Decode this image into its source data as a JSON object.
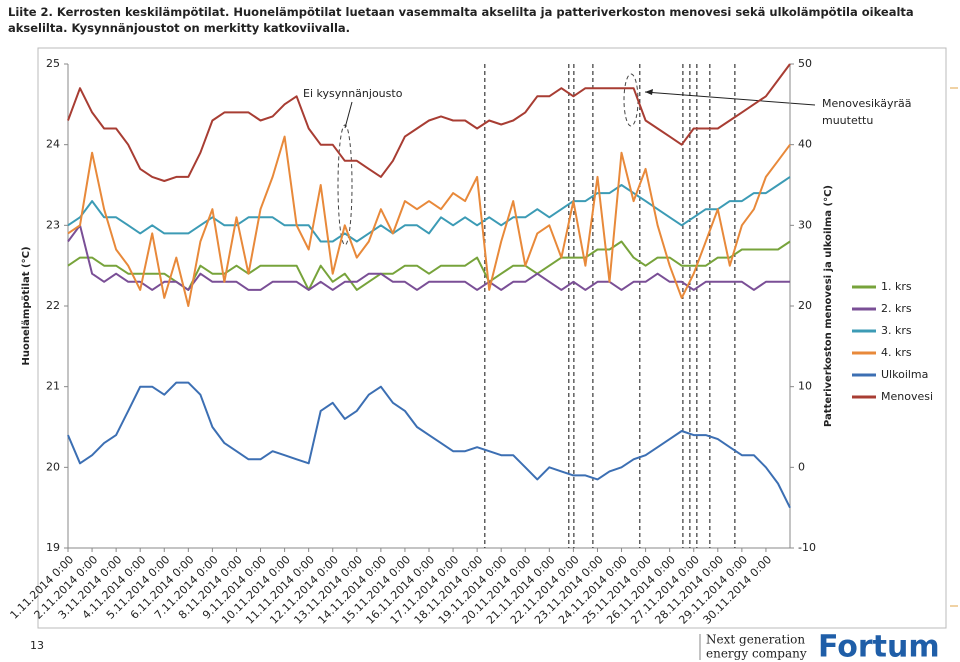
{
  "chart_data": {
    "type": "line",
    "title": "Liite 2. Kerrosten keskilämpötilat. Huonelämpötilat luetaan vasemmalta akselilta ja patteriverkoston menovesi sekä ulkolämpötila oikealta akselilta. Kysynnänjoustot on merkitty katkoviivalla.",
    "ylabel": "Huonelämpötilat (°C)",
    "y2label": "Patteriverkoston menovesi ja ulkoilma (°C)",
    "annotations": [
      {
        "text": [
          "Ei kysynnänjousto"
        ]
      },
      {
        "text": [
          "Menovesikäyrää",
          "muutettu"
        ]
      }
    ],
    "xlim": [
      0,
      30
    ],
    "xticks": [
      {
        "value": 0,
        "label": "1.11.2014 0:00"
      },
      {
        "value": 1,
        "label": "2.11.2014 0:00"
      },
      {
        "value": 2,
        "label": "3.11.2014 0:00"
      },
      {
        "value": 3,
        "label": "4.11.2014 0:00"
      },
      {
        "value": 4,
        "label": "5.11.2014 0:00"
      },
      {
        "value": 5,
        "label": "6.11.2014 0:00"
      },
      {
        "value": 6,
        "label": "7.11.2014 0:00"
      },
      {
        "value": 7,
        "label": "8.11.2014 0:00"
      },
      {
        "value": 8,
        "label": "9.11.2014 0:00"
      },
      {
        "value": 9,
        "label": "10.11.2014 0:00"
      },
      {
        "value": 10,
        "label": "11.11.2014 0:00"
      },
      {
        "value": 11,
        "label": "12.11.2014 0:00"
      },
      {
        "value": 12,
        "label": "13.11.2014 0:00"
      },
      {
        "value": 13,
        "label": "14.11.2014 0:00"
      },
      {
        "value": 14,
        "label": "15.11.2014 0:00"
      },
      {
        "value": 15,
        "label": "16.11.2014 0:00"
      },
      {
        "value": 16,
        "label": "17.11.2014 0:00"
      },
      {
        "value": 17,
        "label": "18.11.2014 0:00"
      },
      {
        "value": 18,
        "label": "19.11.2014 0:00"
      },
      {
        "value": 19,
        "label": "20.11.2014 0:00"
      },
      {
        "value": 20,
        "label": "21.11.2014 0:00"
      },
      {
        "value": 21,
        "label": "22.11.2014 0:00"
      },
      {
        "value": 22,
        "label": "23.11.2014 0:00"
      },
      {
        "value": 23,
        "label": "24.11.2014 0:00"
      },
      {
        "value": 24,
        "label": "25.11.2014 0:00"
      },
      {
        "value": 25,
        "label": "26.11.2014 0:00"
      },
      {
        "value": 26,
        "label": "27.11.2014 0:00"
      },
      {
        "value": 27,
        "label": "28.11.2014 0:00"
      },
      {
        "value": 28,
        "label": "29.11.2014 0:00"
      },
      {
        "value": 29,
        "label": "30.11.2014 0:00"
      }
    ],
    "ylim": [
      19,
      25
    ],
    "yticks": [
      19,
      20,
      21,
      22,
      23,
      24,
      25
    ],
    "y2lim": [
      -10,
      50
    ],
    "y2ticks": [
      -10,
      0,
      10,
      20,
      30,
      40,
      50
    ],
    "event_lines": [
      17.32,
      20.81,
      21.02,
      21.81,
      23.76,
      25.55,
      25.84,
      26.13,
      26.67,
      27.71
    ],
    "x": [
      0,
      0.5,
      1,
      1.5,
      2,
      2.5,
      3,
      3.5,
      4,
      4.5,
      5,
      5.5,
      6,
      6.5,
      7,
      7.5,
      8,
      8.5,
      9,
      9.5,
      10,
      10.5,
      11,
      11.5,
      12,
      12.5,
      13,
      13.5,
      14,
      14.5,
      15,
      15.5,
      16,
      16.5,
      17,
      17.5,
      18,
      18.5,
      19,
      19.5,
      20,
      20.5,
      21,
      21.5,
      22,
      22.5,
      23,
      23.5,
      24,
      24.5,
      25,
      25.5,
      26,
      26.5,
      27,
      27.5,
      28,
      28.5,
      29,
      29.5,
      30
    ],
    "series": [
      {
        "name": "1. krs",
        "color": "#77a33b",
        "values": [
          22.5,
          22.6,
          22.6,
          22.5,
          22.5,
          22.4,
          22.4,
          22.4,
          22.4,
          22.3,
          22.2,
          22.5,
          22.4,
          22.4,
          22.5,
          22.4,
          22.5,
          22.5,
          22.5,
          22.5,
          22.2,
          22.5,
          22.3,
          22.4,
          22.2,
          22.3,
          22.4,
          22.4,
          22.5,
          22.5,
          22.4,
          22.5,
          22.5,
          22.5,
          22.6,
          22.3,
          22.4,
          22.5,
          22.5,
          22.4,
          22.5,
          22.6,
          22.6,
          22.6,
          22.7,
          22.7,
          22.8,
          22.6,
          22.5,
          22.6,
          22.6,
          22.5,
          22.5,
          22.5,
          22.6,
          22.6,
          22.7,
          22.7,
          22.7,
          22.7,
          22.8
        ]
      },
      {
        "name": "2. krs",
        "color": "#7a4f96",
        "values": [
          22.8,
          23.0,
          22.4,
          22.3,
          22.4,
          22.3,
          22.3,
          22.2,
          22.3,
          22.3,
          22.2,
          22.4,
          22.3,
          22.3,
          22.3,
          22.2,
          22.2,
          22.3,
          22.3,
          22.3,
          22.2,
          22.3,
          22.2,
          22.3,
          22.3,
          22.4,
          22.4,
          22.3,
          22.3,
          22.2,
          22.3,
          22.3,
          22.3,
          22.3,
          22.2,
          22.3,
          22.2,
          22.3,
          22.3,
          22.4,
          22.3,
          22.2,
          22.3,
          22.2,
          22.3,
          22.3,
          22.2,
          22.3,
          22.3,
          22.4,
          22.3,
          22.3,
          22.2,
          22.3,
          22.3,
          22.3,
          22.3,
          22.2,
          22.3,
          22.3,
          22.3
        ]
      },
      {
        "name": "3. krs",
        "color": "#3c9bb5",
        "values": [
          23.0,
          23.1,
          23.3,
          23.1,
          23.1,
          23.0,
          22.9,
          23.0,
          22.9,
          22.9,
          22.9,
          23.0,
          23.1,
          23.0,
          23.0,
          23.1,
          23.1,
          23.1,
          23.0,
          23.0,
          23.0,
          22.8,
          22.8,
          22.9,
          22.8,
          22.9,
          23.0,
          22.9,
          23.0,
          23.0,
          22.9,
          23.1,
          23.0,
          23.1,
          23.0,
          23.1,
          23.0,
          23.1,
          23.1,
          23.2,
          23.1,
          23.2,
          23.3,
          23.3,
          23.4,
          23.4,
          23.5,
          23.4,
          23.3,
          23.2,
          23.1,
          23.0,
          23.1,
          23.2,
          23.2,
          23.3,
          23.3,
          23.4,
          23.4,
          23.5,
          23.6
        ]
      },
      {
        "name": "4. krs",
        "color": "#e8893a",
        "values": [
          22.9,
          23.0,
          23.9,
          23.2,
          22.7,
          22.5,
          22.2,
          22.9,
          22.1,
          22.6,
          22.0,
          22.8,
          23.2,
          22.3,
          23.1,
          22.4,
          23.2,
          23.6,
          24.1,
          23.0,
          22.7,
          23.5,
          22.4,
          23.0,
          22.6,
          22.8,
          23.2,
          22.9,
          23.3,
          23.2,
          23.3,
          23.2,
          23.4,
          23.3,
          23.6,
          22.2,
          22.8,
          23.3,
          22.5,
          22.9,
          23.0,
          22.6,
          23.3,
          22.5,
          23.6,
          22.3,
          23.9,
          23.3,
          23.7,
          23.0,
          22.5,
          22.1,
          22.4,
          22.8,
          23.2,
          22.5,
          23.0,
          23.2,
          23.6,
          23.8,
          24.0
        ]
      },
      {
        "name": "Ulkoilma",
        "color": "#3c6fb3",
        "axis": "y2",
        "values": [
          4,
          0.5,
          1.5,
          3,
          4,
          7,
          10,
          10,
          9,
          10.5,
          10.5,
          9,
          5,
          3,
          2,
          1,
          1,
          2,
          1.5,
          1,
          0.5,
          7,
          8,
          6,
          7,
          9,
          10,
          8,
          7,
          5,
          4,
          3,
          2,
          2,
          2.5,
          2,
          1.5,
          1.5,
          0,
          -1.5,
          0,
          -0.5,
          -1,
          -1,
          -1.5,
          -0.5,
          0,
          1,
          1.5,
          2.5,
          3.5,
          4.5,
          4,
          4,
          3.5,
          2.5,
          1.5,
          1.5,
          0,
          -2,
          -5
        ]
      },
      {
        "name": "Menovesi",
        "color": "#a83d33",
        "axis": "y2",
        "values": [
          43,
          47,
          44,
          42,
          42,
          40,
          37,
          36,
          35.5,
          36,
          36,
          39,
          43,
          44,
          44,
          44,
          43,
          43.5,
          45,
          46,
          42,
          40,
          40,
          38,
          38,
          37,
          36,
          38,
          41,
          42,
          43,
          43.5,
          43,
          43,
          42,
          43,
          42.5,
          43,
          44,
          46,
          46,
          47,
          46,
          47,
          47,
          47,
          47,
          47,
          43,
          42,
          41,
          40,
          42,
          42,
          42,
          43,
          44,
          45,
          46,
          48,
          50
        ]
      }
    ]
  },
  "footer": {
    "page_number": "13",
    "tagline": [
      "Next generation",
      "energy company"
    ],
    "brand": "Fortum"
  }
}
